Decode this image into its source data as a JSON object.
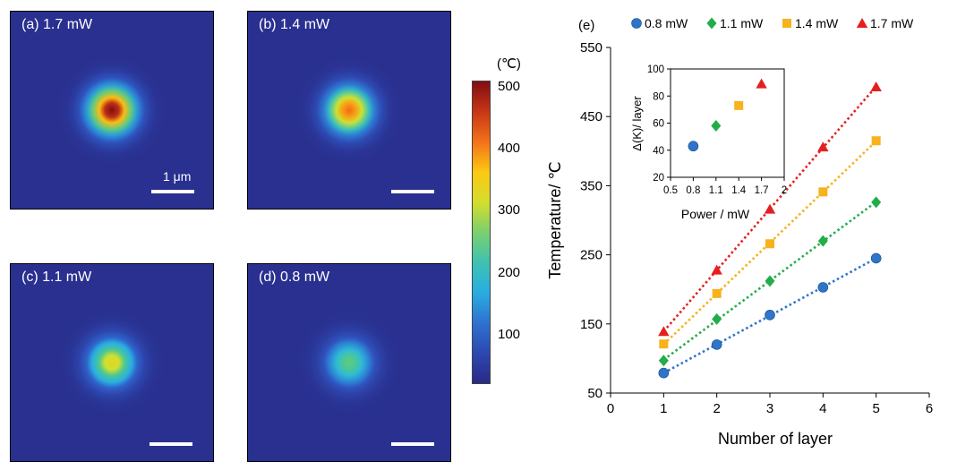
{
  "panels": [
    {
      "label": "(a) 1.7 mW",
      "power_mW": 1.7,
      "scale_bar": "1 μm"
    },
    {
      "label": "(b) 1.4 mW",
      "power_mW": 1.4
    },
    {
      "label": "(c) 1.1 mW",
      "power_mW": 1.1
    },
    {
      "label": "(d) 0.8 mW",
      "power_mW": 0.8
    }
  ],
  "colorbar": {
    "unit": "(℃)",
    "ticks": [
      "500",
      "400",
      "300",
      "200",
      "100"
    ],
    "min": 20,
    "max": 500
  },
  "chart_data": [
    {
      "type": "scatter",
      "panel_label": "(e)",
      "xlabel": "Number of layer",
      "ylabel": "Temperature/ ℃",
      "xlim": [
        0,
        6
      ],
      "ylim": [
        50,
        550
      ],
      "xticks": [
        0,
        1,
        2,
        3,
        4,
        5,
        6
      ],
      "yticks": [
        50,
        150,
        250,
        350,
        450,
        550
      ],
      "legend_position": "top",
      "trendlines": "dotted linear fit per series",
      "series": [
        {
          "name": "0.8 mW",
          "color": "#2e75c9",
          "marker": "circle",
          "x": [
            1,
            2,
            3,
            4,
            5
          ],
          "y": [
            79,
            120,
            163,
            203,
            245
          ]
        },
        {
          "name": "1.1 mW",
          "color": "#22ad48",
          "marker": "diamond",
          "x": [
            1,
            2,
            3,
            4,
            5
          ],
          "y": [
            97,
            157,
            212,
            270,
            326
          ]
        },
        {
          "name": "1.4 mW",
          "color": "#f7b21c",
          "marker": "square",
          "x": [
            1,
            2,
            3,
            4,
            5
          ],
          "y": [
            121,
            194,
            266,
            341,
            415
          ]
        },
        {
          "name": "1.7 mW",
          "color": "#e4201e",
          "marker": "triangle",
          "x": [
            1,
            2,
            3,
            4,
            5
          ],
          "y": [
            139,
            228,
            316,
            406,
            493
          ]
        }
      ]
    },
    {
      "type": "scatter",
      "xlabel": "Power / mW",
      "ylabel": "Δ(K)/ layer",
      "xlim": [
        0.5,
        2
      ],
      "ylim": [
        20,
        100
      ],
      "xticks": [
        "0.5",
        "0.8",
        "1.1",
        "1.4",
        "1.7",
        "2"
      ],
      "yticks": [
        "20",
        "40",
        "60",
        "80",
        "100"
      ],
      "points": [
        {
          "x": 0.8,
          "y": 43,
          "color": "#2e75c9",
          "marker": "circle"
        },
        {
          "x": 1.1,
          "y": 58,
          "color": "#22ad48",
          "marker": "diamond"
        },
        {
          "x": 1.4,
          "y": 73,
          "color": "#f7b21c",
          "marker": "square"
        },
        {
          "x": 1.7,
          "y": 89,
          "color": "#e4201e",
          "marker": "triangle"
        }
      ]
    }
  ]
}
